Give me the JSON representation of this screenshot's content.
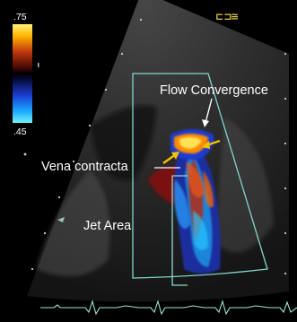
{
  "color_scale": {
    "top_value": ".75",
    "bottom_value": ".45"
  },
  "annotations": {
    "flow_convergence": "Flow Convergence",
    "vena_contracta": "Vena contracta",
    "jet_area": "Jet Area"
  },
  "corner_glyphs": {
    "left": "⊏⊐",
    "right": "≅"
  },
  "colors": {
    "background": "#000000",
    "sector_outline": "#7fd6cf",
    "jet_outline": "#8fd9d1",
    "annotation_arrow": "#ffffff",
    "flow_arrow": "#f2c200",
    "ecg_trace": "#9ee7cf",
    "bracket": "#8fd9d1"
  },
  "icons": [
    "probe-orientation-icon",
    "settings-icon"
  ]
}
